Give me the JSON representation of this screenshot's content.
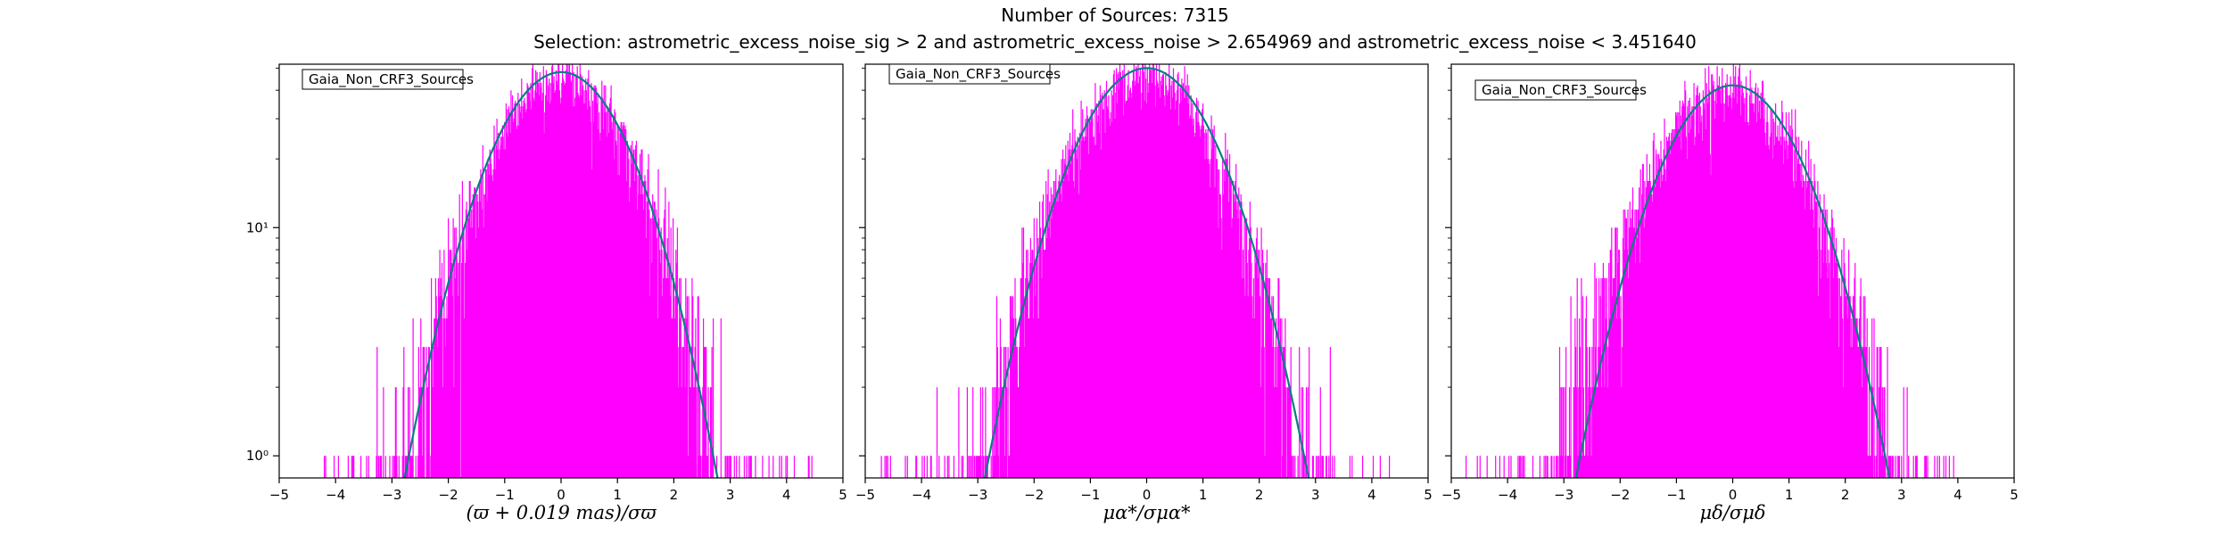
{
  "figure": {
    "title": "Number of Sources: 7315",
    "subtitle": "Selection: astrometric_excess_noise_sig > 2 and astrometric_excess_noise > 2.654969 and astrometric_excess_noise < 3.451640"
  },
  "colors": {
    "histogram": "#ff00ff",
    "gaussian": "#008080",
    "axes": "#000000"
  },
  "chart_data": [
    {
      "type": "histogram",
      "legend": "Gaia_Non_CRF3_Sources",
      "legend_placement": "upper-left",
      "xlabel": "(ϖ + 0.019 mas)/σϖ",
      "xlim": [
        -5,
        5
      ],
      "ylim": [
        0.8,
        52
      ],
      "yscale": "log",
      "x_ticks": [
        -5,
        -4,
        -3,
        -2,
        -1,
        0,
        1,
        2,
        3,
        4,
        5
      ],
      "y_ticks": [
        {
          "value": 1,
          "label": "10⁰"
        },
        {
          "value": 10,
          "label": "10¹"
        }
      ],
      "histogram": {
        "x_min": -4.3,
        "x_max": 4.5,
        "peak": 45,
        "sigma": 1.0,
        "center": 0.0,
        "bin_width": 0.0125
      },
      "gaussian": {
        "amplitude": 48,
        "mean": 0.0,
        "sigma": 0.97
      }
    },
    {
      "type": "histogram",
      "legend": "Gaia_Non_CRF3_Sources",
      "legend_placement": "upper-left",
      "xlabel": "μα*/σμα*",
      "xlim": [
        -5,
        5
      ],
      "ylim": [
        0.8,
        52
      ],
      "yscale": "log",
      "x_ticks": [
        -5,
        -4,
        -3,
        -2,
        -1,
        0,
        1,
        2,
        3,
        4,
        5
      ],
      "y_ticks": [
        {
          "value": 1,
          "label": "10⁰"
        },
        {
          "value": 10,
          "label": "10¹"
        }
      ],
      "histogram": {
        "x_min": -4.8,
        "x_max": 4.4,
        "peak": 46,
        "sigma": 1.02,
        "center": -0.05,
        "bin_width": 0.0125
      },
      "gaussian": {
        "amplitude": 50,
        "mean": 0.0,
        "sigma": 1.0
      }
    },
    {
      "type": "histogram",
      "legend": "Gaia_Non_CRF3_Sources",
      "legend_placement": "upper-left",
      "xlabel": "μδ/σμδ",
      "xlim": [
        -5,
        5
      ],
      "ylim": [
        0.8,
        52
      ],
      "yscale": "log",
      "x_ticks": [
        -5,
        -4,
        -3,
        -2,
        -1,
        0,
        1,
        2,
        3,
        4,
        5
      ],
      "y_ticks": [
        {
          "value": 1,
          "label": "10⁰"
        },
        {
          "value": 10,
          "label": "10¹"
        }
      ],
      "histogram": {
        "x_min": -4.9,
        "x_max": 4.1,
        "peak": 40,
        "sigma": 1.05,
        "center": -0.1,
        "bin_width": 0.0125
      },
      "gaussian": {
        "amplitude": 42,
        "mean": 0.0,
        "sigma": 0.99
      }
    }
  ]
}
